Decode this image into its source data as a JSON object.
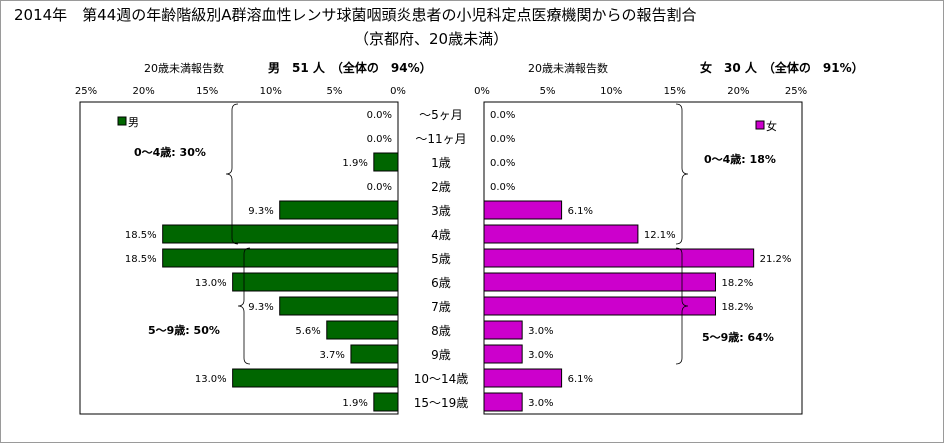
{
  "title": {
    "line1": "2014年　第44週の年齢階級別A群溶血性レンサ球菌咽頭炎患者の小児科定点医療機関からの報告割合",
    "line2": "（京都府、20歳未満）"
  },
  "colors": {
    "male": "#006600",
    "female": "#cc00cc",
    "bar_border": "#000000"
  },
  "chart_data": {
    "type": "bar",
    "orientation": "horizontal-butterfly",
    "categories": [
      "～5ヶ月",
      "～11ヶ月",
      "1歳",
      "2歳",
      "3歳",
      "4歳",
      "5歳",
      "6歳",
      "7歳",
      "8歳",
      "9歳",
      "10～14歳",
      "15～19歳"
    ],
    "xlim": [
      0,
      25
    ],
    "xticks": [
      "25%",
      "20%",
      "15%",
      "10%",
      "5%",
      "0%",
      "0%",
      "5%",
      "10%",
      "15%",
      "20%",
      "25%"
    ],
    "male": {
      "name": "男",
      "header_left": "20歳未満報告数",
      "header_right": "男　51 人　（全体の　94%）",
      "values": [
        0.0,
        0.0,
        1.9,
        0.0,
        9.3,
        18.5,
        18.5,
        13.0,
        9.3,
        5.6,
        3.7,
        13.0,
        1.9
      ],
      "labels": [
        "0.0%",
        "0.0%",
        "1.9%",
        "0.0%",
        "9.3%",
        "18.5%",
        "18.5%",
        "13.0%",
        "9.3%",
        "5.6%",
        "3.7%",
        "13.0%",
        "1.9%"
      ],
      "group_labels": [
        "0～4歳: 30%",
        "5～9歳: 50%"
      ]
    },
    "female": {
      "name": "女",
      "header_left": "20歳未満報告数",
      "header_right": "女　30 人　（全体の　91%）",
      "values": [
        0.0,
        0.0,
        0.0,
        0.0,
        6.1,
        12.1,
        21.2,
        18.2,
        18.2,
        3.0,
        3.0,
        6.1,
        3.0
      ],
      "labels": [
        "0.0%",
        "0.0%",
        "0.0%",
        "0.0%",
        "6.1%",
        "12.1%",
        "21.2%",
        "18.2%",
        "18.2%",
        "3.0%",
        "3.0%",
        "6.1%",
        "3.0%"
      ],
      "group_labels": [
        "0～4歳: 18%",
        "5～9歳: 64%"
      ]
    }
  }
}
